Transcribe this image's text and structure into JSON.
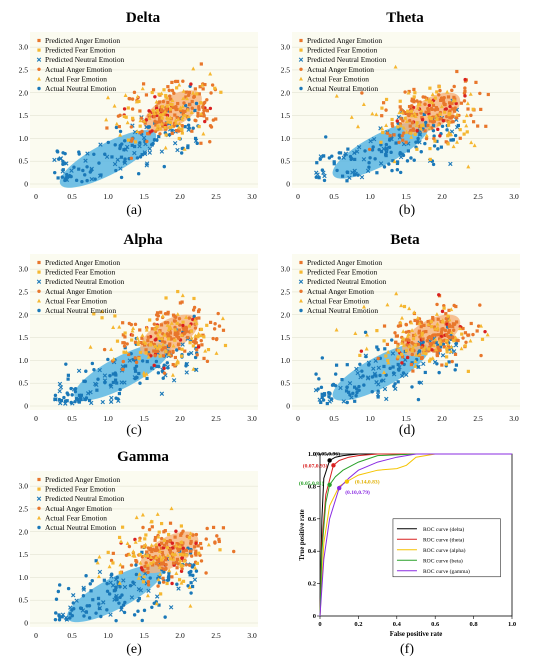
{
  "legend_items": [
    {
      "label": "Predicted Anger Emotion",
      "color": "#e8762b",
      "marker": "square"
    },
    {
      "label": "Predicted Fear Emotion",
      "color": "#f5b731",
      "marker": "square"
    },
    {
      "label": "Predicted Neutral Emotion",
      "color": "#1a78b8",
      "marker": "cross"
    },
    {
      "label": "Actual Anger Emotion",
      "color": "#e8762b",
      "marker": "circle"
    },
    {
      "label": "Actual Fear Emotion",
      "color": "#f5b731",
      "marker": "triangle"
    },
    {
      "label": "Actual Neutral Emotion",
      "color": "#1a78b8",
      "marker": "circle"
    }
  ],
  "colors": {
    "anger": "#e8762b",
    "fear": "#f5b731",
    "neutral": "#1a78b8",
    "red": "#d92020",
    "neutral_ellipse": "#5bb6e3",
    "anger_ellipse": "#f6b27a",
    "plot_bg": "#fbfbf0"
  },
  "chart_data": [
    {
      "type": "scatter",
      "title": "Delta",
      "caption": "(a)",
      "xlim": [
        0,
        3
      ],
      "ylim": [
        0,
        3.2
      ],
      "xticks": [
        "0",
        "0.5",
        "1.0",
        "1.5",
        "2.0",
        "2.5",
        "3.0"
      ],
      "yticks": [
        "0",
        "0.5",
        "1.0",
        "1.5",
        "2.0",
        "2.5",
        "3.0"
      ],
      "clusters": {
        "neutral": {
          "center": [
            1.0,
            0.55
          ]
        },
        "anger": {
          "center": [
            1.9,
            1.6
          ]
        }
      }
    },
    {
      "type": "scatter",
      "title": "Theta",
      "caption": "(b)",
      "xlim": [
        0,
        3
      ],
      "ylim": [
        0,
        3.2
      ],
      "xticks": [
        "0",
        "0.5",
        "1.0",
        "1.5",
        "2.0",
        "2.5",
        "3.0"
      ],
      "yticks": [
        "0",
        "0.5",
        "1.0",
        "1.5",
        "2.0",
        "2.5",
        "3.0"
      ],
      "clusters": {
        "neutral": {
          "center": [
            1.15,
            0.75
          ]
        },
        "anger": {
          "center": [
            1.85,
            1.55
          ]
        }
      }
    },
    {
      "type": "scatter",
      "title": "Alpha",
      "caption": "(c)",
      "xlim": [
        0,
        3
      ],
      "ylim": [
        0,
        3.2
      ],
      "xticks": [
        "0",
        "0.5",
        "1.0",
        "1.5",
        "2.0",
        "2.5",
        "3.0"
      ],
      "yticks": [
        "0",
        "0.5",
        "1.0",
        "1.5",
        "2.0",
        "2.5",
        "3.0"
      ],
      "clusters": {
        "neutral": {
          "center": [
            1.2,
            0.75
          ]
        },
        "anger": {
          "center": [
            1.85,
            1.55
          ]
        }
      }
    },
    {
      "type": "scatter",
      "title": "Beta",
      "caption": "(d)",
      "xlim": [
        0,
        3
      ],
      "ylim": [
        0,
        3.2
      ],
      "xticks": [
        "0",
        "0.5",
        "1.0",
        "1.5",
        "2.0",
        "2.5",
        "3.0"
      ],
      "yticks": [
        "0",
        "0.5",
        "1.0",
        "1.5",
        "2.0",
        "2.5",
        "3.0"
      ],
      "clusters": {
        "neutral": {
          "center": [
            1.15,
            0.75
          ]
        },
        "anger": {
          "center": [
            1.85,
            1.55
          ]
        }
      }
    },
    {
      "type": "scatter",
      "title": "Gamma",
      "caption": "(e)",
      "xlim": [
        0,
        3
      ],
      "ylim": [
        0,
        3.2
      ],
      "xticks": [
        "0",
        "0.5",
        "1.0",
        "1.5",
        "2.0",
        "2.5",
        "3.0"
      ],
      "yticks": [
        "0",
        "0.5",
        "1.0",
        "1.5",
        "2.0",
        "2.5",
        "3.0"
      ],
      "clusters": {
        "neutral": {
          "center": [
            1.1,
            0.65
          ]
        },
        "anger": {
          "center": [
            1.85,
            1.55
          ]
        }
      }
    },
    {
      "type": "line",
      "caption": "(f)",
      "xlabel": "False positive rate",
      "ylabel": "True positive rate",
      "xlim": [
        0,
        1
      ],
      "ylim": [
        0,
        1
      ],
      "xticks": [
        "0",
        "0.2",
        "0.4",
        "0.6",
        "0.8",
        "1.0"
      ],
      "yticks": [
        "0",
        "0.2",
        "0.4",
        "0.6",
        "0.8",
        "1.0"
      ],
      "series": [
        {
          "name": "ROC curve (delta)",
          "color": "#000000",
          "x": [
            0,
            0.01,
            0.02,
            0.05,
            0.08,
            0.12,
            0.2,
            0.35,
            0.5,
            1.0
          ],
          "y": [
            0,
            0.6,
            0.85,
            0.96,
            0.98,
            0.99,
            1.0,
            1.0,
            1.0,
            1.0
          ],
          "annotation": {
            "text": "(0.05,0.96)",
            "point": [
              0.05,
              0.96
            ],
            "color": "#000000"
          }
        },
        {
          "name": "ROC curve (theta)",
          "color": "#d92020",
          "x": [
            0,
            0.01,
            0.03,
            0.07,
            0.1,
            0.15,
            0.2,
            0.3,
            0.5,
            1.0
          ],
          "y": [
            0,
            0.45,
            0.75,
            0.93,
            0.96,
            0.98,
            0.99,
            1.0,
            1.0,
            1.0
          ],
          "annotation": {
            "text": "(0.07,0.93)",
            "point": [
              0.07,
              0.93
            ],
            "color": "#d92020"
          }
        },
        {
          "name": "ROC curve (alpha)",
          "color": "#f5c400",
          "x": [
            0,
            0.02,
            0.05,
            0.1,
            0.14,
            0.2,
            0.3,
            0.4,
            0.45,
            0.5,
            0.6,
            1.0
          ],
          "y": [
            0,
            0.45,
            0.68,
            0.8,
            0.83,
            0.87,
            0.9,
            0.91,
            0.93,
            0.98,
            1.0,
            1.0
          ],
          "annotation": {
            "text": "(0.14,0.83)",
            "point": [
              0.14,
              0.83
            ],
            "color": "#e0b000"
          }
        },
        {
          "name": "ROC curve (beta)",
          "color": "#28a028",
          "x": [
            0,
            0.01,
            0.03,
            0.05,
            0.08,
            0.12,
            0.2,
            0.3,
            0.5,
            1.0
          ],
          "y": [
            0,
            0.4,
            0.7,
            0.81,
            0.86,
            0.9,
            0.95,
            0.99,
            1.0,
            1.0
          ],
          "annotation": {
            "text": "(0.05,0.81)",
            "point": [
              0.05,
              0.81
            ],
            "color": "#28a028"
          }
        },
        {
          "name": "ROC curve (gamma)",
          "color": "#8a2be2",
          "x": [
            0,
            0.02,
            0.05,
            0.1,
            0.15,
            0.2,
            0.3,
            0.4,
            0.5,
            1.0
          ],
          "y": [
            0,
            0.35,
            0.6,
            0.79,
            0.85,
            0.9,
            0.95,
            0.98,
            1.0,
            1.0
          ],
          "annotation": {
            "text": "(0.10,0.79)",
            "point": [
              0.1,
              0.79
            ],
            "color": "#8a2be2"
          }
        }
      ]
    }
  ]
}
